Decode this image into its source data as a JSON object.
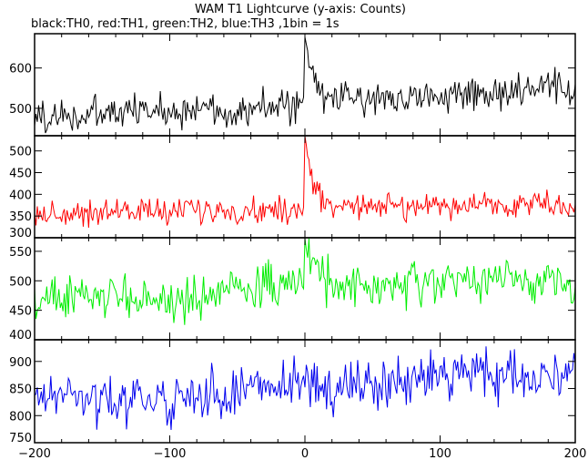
{
  "chart_data": {
    "type": "line",
    "title": "WAM T1 Lightcurve (y-axis: Counts)",
    "subtitle": "black:TH0, red:TH1, green:TH2, blue:TH3 ,1bin = 1s",
    "x_range": [
      -200,
      200
    ],
    "x_ticks": [
      -200,
      -100,
      0,
      100,
      200
    ],
    "x_tick_labels": [
      "−200",
      "−100",
      "0",
      "100",
      "200"
    ],
    "bin_seconds": 1,
    "grid": false,
    "panels": [
      {
        "color": "#000000",
        "ylim": [
          432,
          685
        ],
        "yticks": [
          500,
          600
        ],
        "baseline_start": 480,
        "baseline_end": 540,
        "noise": 22,
        "burst_peak": 180,
        "burst_decay_s": 5,
        "step_at": 0,
        "step_size": 5,
        "wiggle": 4
      },
      {
        "color": "#ff0000",
        "ylim": [
          300,
          535
        ],
        "yticks": [
          300,
          350,
          400,
          450,
          500
        ],
        "baseline_start": 358,
        "baseline_end": 368,
        "noise": 15,
        "burst_peak": 165,
        "burst_decay_s": 4,
        "step_at": 0,
        "step_size": 10,
        "wiggle": 3
      },
      {
        "color": "#00ee00",
        "ylim": [
          400,
          573
        ],
        "yticks": [
          400,
          450,
          500,
          550
        ],
        "baseline_start": 465,
        "baseline_end": 480,
        "noise": 18,
        "burst_peak": 85,
        "burst_decay_s": 7,
        "step_at": -65,
        "step_size": 20,
        "wiggle": 4
      },
      {
        "color": "#0000ee",
        "ylim": [
          750,
          940
        ],
        "yticks": [
          750,
          800,
          850,
          900
        ],
        "baseline_start": 825,
        "baseline_end": 880,
        "noise": 22,
        "burst_peak": 0,
        "burst_decay_s": 1,
        "step_at": 0,
        "step_size": 0,
        "wiggle": 6
      }
    ]
  }
}
